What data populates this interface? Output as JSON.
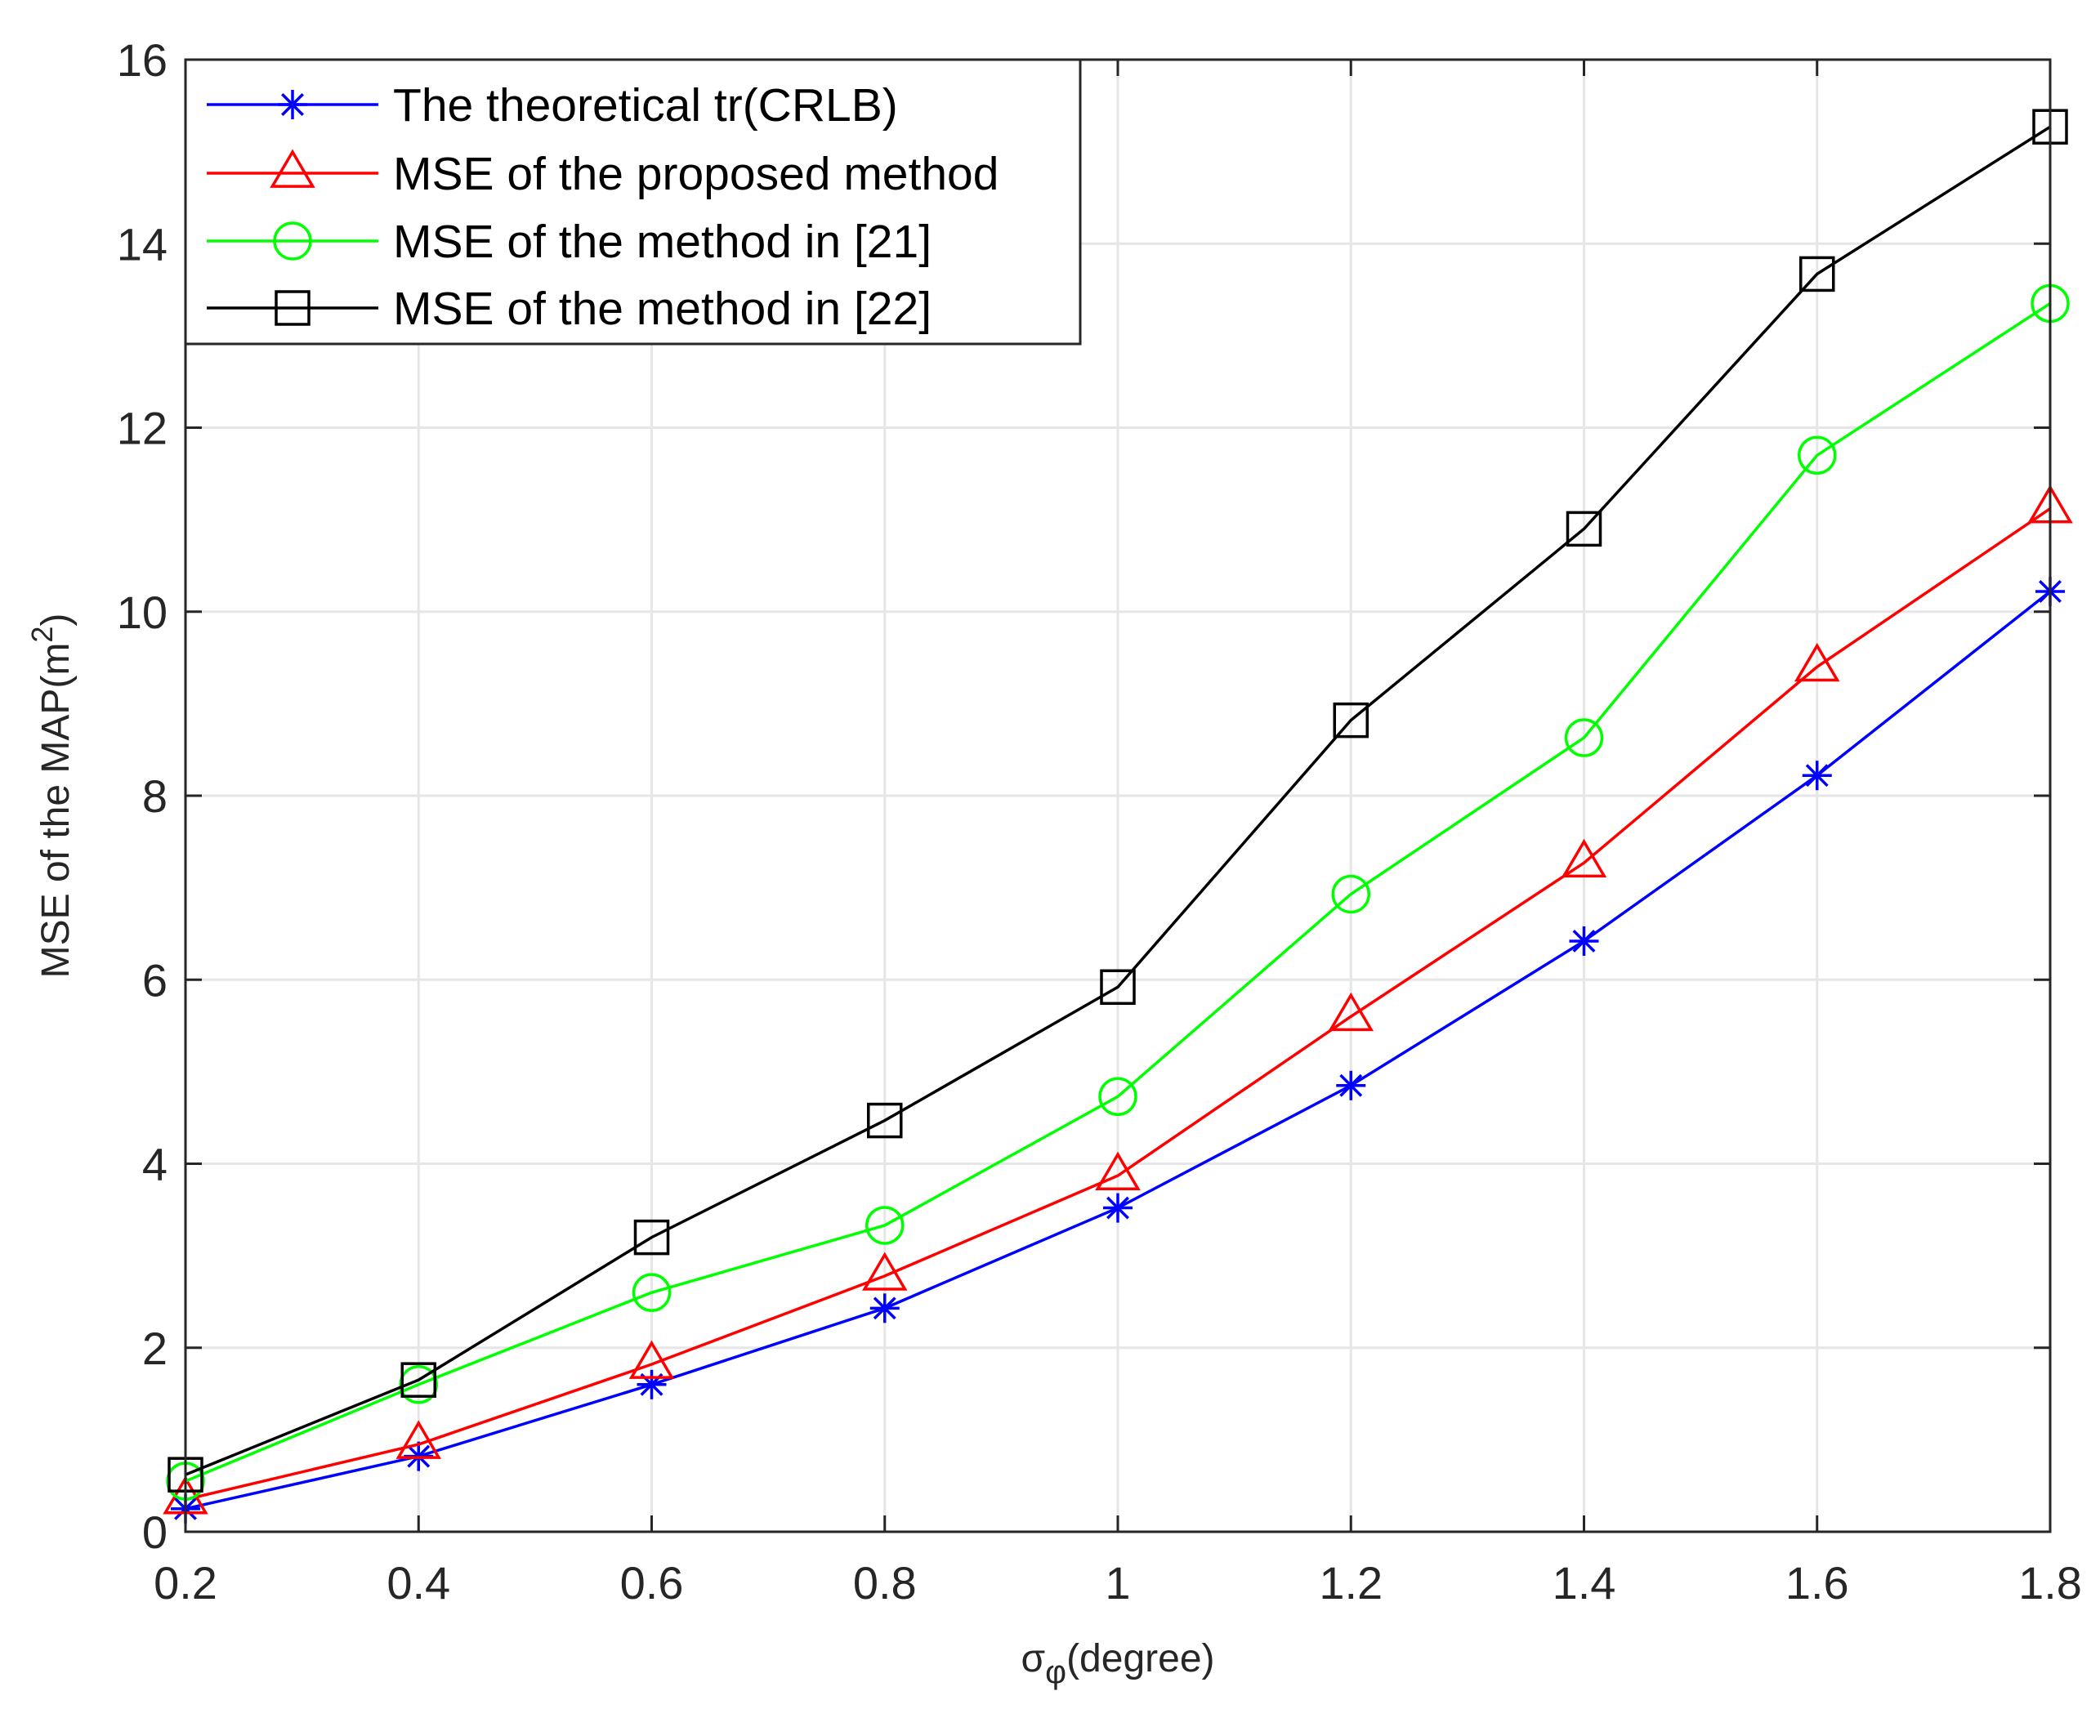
{
  "chart_data": {
    "type": "line",
    "title": "",
    "xlabel": "σ",
    "xlabel_sub": "φ",
    "xlabel_suffix": "(degree)",
    "ylabel": "MSE of the MAP(m",
    "ylabel_sup": "2",
    "ylabel_suffix": ")",
    "xlim": [
      0.2,
      1.8
    ],
    "ylim": [
      0,
      16
    ],
    "grid": true,
    "legend_position": "top-left",
    "x": [
      0.2,
      0.4,
      0.6,
      0.8,
      1.0,
      1.2,
      1.4,
      1.6,
      1.8
    ],
    "x_ticks": [
      0.2,
      0.4,
      0.6,
      0.8,
      1.0,
      1.2,
      1.4,
      1.6,
      1.8
    ],
    "x_tick_labels": [
      "0.2",
      "0.4",
      "0.6",
      "0.8",
      "1",
      "1.2",
      "1.4",
      "1.6",
      "1.8"
    ],
    "y_ticks": [
      0,
      2,
      4,
      6,
      8,
      10,
      12,
      14,
      16
    ],
    "y_tick_labels": [
      "0",
      "2",
      "4",
      "6",
      "8",
      "10",
      "12",
      "14",
      "16"
    ],
    "series": [
      {
        "name": "The theoretical tr(CRLB)",
        "color": "#0000ff",
        "marker": "asterisk",
        "values": [
          0.25,
          0.82,
          1.6,
          2.43,
          3.52,
          4.85,
          6.42,
          8.22,
          10.22
        ]
      },
      {
        "name": "MSE of the proposed method",
        "color": "#ff0000",
        "marker": "triangle",
        "values": [
          0.35,
          0.95,
          1.82,
          2.78,
          3.87,
          5.6,
          7.27,
          9.4,
          11.12
        ]
      },
      {
        "name": "MSE of the method in [21]",
        "color": "#00ff00",
        "marker": "circle",
        "values": [
          0.55,
          1.6,
          2.6,
          3.33,
          4.73,
          6.93,
          8.63,
          11.7,
          13.35
        ]
      },
      {
        "name": "MSE of the method in [22]",
        "color": "#000000",
        "marker": "square",
        "values": [
          0.62,
          1.65,
          3.2,
          4.47,
          5.92,
          8.82,
          10.9,
          13.67,
          15.27
        ]
      }
    ]
  }
}
